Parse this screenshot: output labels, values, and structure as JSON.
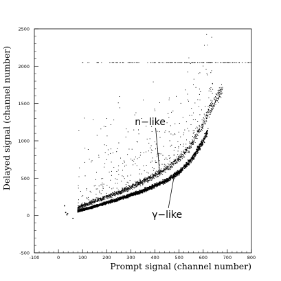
{
  "chart_data": {
    "type": "scatter",
    "title": "",
    "xlabel": "Prompt signal (channel number)",
    "ylabel": "Delayed signal (channel number)",
    "xlim": [
      -100,
      800
    ],
    "ylim": [
      -500,
      2500
    ],
    "x_ticks": [
      -100,
      0,
      100,
      200,
      300,
      400,
      500,
      600,
      700,
      800
    ],
    "x_tick_labels": [
      "-100",
      "0",
      "100",
      "200",
      "300",
      "400",
      "500",
      "600",
      "700",
      "800"
    ],
    "y_ticks": [
      -500,
      0,
      500,
      1000,
      1500,
      2000,
      2500
    ],
    "y_tick_labels": [
      "-500",
      "0",
      "500",
      "1000",
      "1500",
      "2000",
      "2500"
    ],
    "grid": false,
    "legend": "none",
    "marker_color": "#000000",
    "bands": [
      {
        "x": [
          80,
          150,
          250,
          350,
          450,
          500,
          550,
          600,
          620
        ],
        "y": [
          60,
          120,
          220,
          330,
          470,
          580,
          740,
          1000,
          1150
        ]
      },
      {
        "x": [
          80,
          150,
          250,
          350,
          450,
          500,
          550,
          600,
          640,
          680
        ],
        "y": [
          100,
          190,
          310,
          450,
          630,
          760,
          940,
          1240,
          1480,
          1700
        ]
      }
    ],
    "saturation_line": {
      "y": 2048,
      "x_range": [
        50,
        800
      ]
    },
    "annotations": [
      {
        "text": "n−like",
        "x": 380,
        "y": 1210,
        "arrow_to": [
          420,
          560
        ]
      },
      {
        "text": "γ−like",
        "x": 450,
        "y": -30,
        "arrow_to": [
          480,
          540
        ]
      }
    ]
  }
}
